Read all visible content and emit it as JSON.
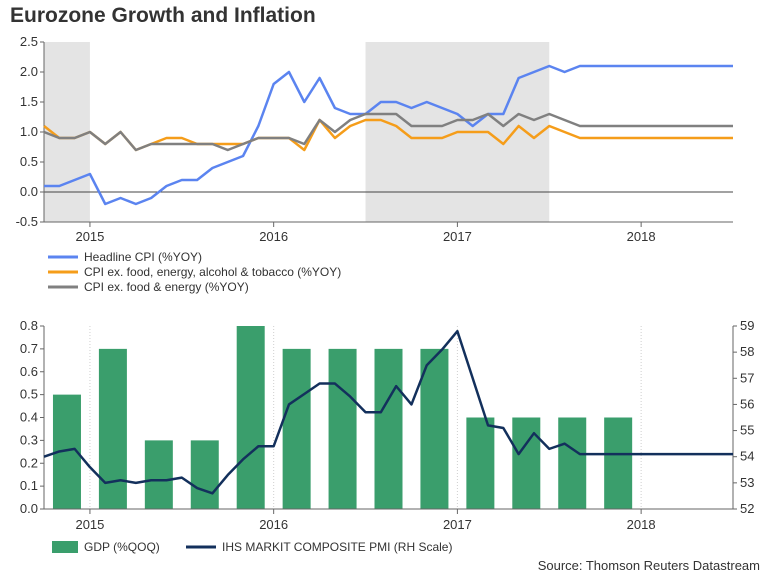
{
  "title": "Eurozone Growth and Inflation",
  "source": "Source: Thomson Reuters Datastream",
  "colors": {
    "headline": "#5b84f0",
    "core_excl_alc": "#f59d1a",
    "core": "#808080",
    "gdp": "#3a9e6c",
    "pmi": "#13305c",
    "shade": "#e4e4e4"
  },
  "chart_data": [
    {
      "type": "line",
      "title": "Eurozone Growth and Inflation",
      "xlabel": "",
      "ylabel": "",
      "ylim": [
        -0.5,
        2.5
      ],
      "y_ticks": [
        "2.5",
        "2.0",
        "1.5",
        "1.0",
        "0.5",
        "0.0",
        "-0.5"
      ],
      "x_tick_labels": [
        "2015",
        "2016",
        "2017",
        "2018"
      ],
      "x_tick_positions": [
        2015.0,
        2016.0,
        2017.0,
        2018.0
      ],
      "x_range": [
        2014.75,
        2018.5
      ],
      "shaded_ranges": [
        [
          2014.75,
          2015.0
        ],
        [
          2016.5,
          2017.5
        ]
      ],
      "x": [
        2014.75,
        2014.8333,
        2014.9167,
        2015.0,
        2015.0833,
        2015.1667,
        2015.25,
        2015.3333,
        2015.4167,
        2015.5,
        2015.5833,
        2015.6667,
        2015.75,
        2015.8333,
        2015.9167,
        2016.0,
        2016.0833,
        2016.1667,
        2016.25,
        2016.3333,
        2016.4167,
        2016.5,
        2016.5833,
        2016.6667,
        2016.75,
        2016.8333,
        2016.9167,
        2017.0,
        2017.0833,
        2017.1667,
        2017.25,
        2017.3333,
        2017.4167,
        2017.5,
        2017.5833,
        2017.6667,
        2017.75,
        2017.8333,
        2017.9167,
        2018.0,
        2018.0833,
        2018.1667,
        2018.25,
        2018.3333,
        2018.4167,
        2018.5
      ],
      "series": [
        {
          "name": "Headline CPI (%YOY)",
          "values": [
            0.1,
            0.1,
            0.2,
            0.3,
            -0.2,
            -0.1,
            -0.2,
            -0.1,
            0.1,
            0.2,
            0.2,
            0.4,
            0.5,
            0.6,
            1.1,
            1.8,
            2.0,
            1.5,
            1.9,
            1.4,
            1.3,
            1.3,
            1.5,
            1.5,
            1.4,
            1.5,
            1.4,
            1.3,
            1.1,
            1.3,
            1.3,
            1.9,
            2.0,
            2.1,
            2.0,
            2.1,
            2.1,
            2.1,
            2.1,
            2.1,
            2.1,
            2.1,
            2.1,
            2.1,
            2.1,
            2.1
          ]
        },
        {
          "name": "CPI ex. food, energy, alcohol & tobacco (%YOY)",
          "values": [
            1.1,
            0.9,
            0.9,
            1.0,
            0.8,
            1.0,
            0.7,
            0.8,
            0.9,
            0.9,
            0.8,
            0.8,
            0.8,
            0.8,
            0.9,
            0.9,
            0.9,
            0.7,
            1.2,
            0.9,
            1.1,
            1.2,
            1.2,
            1.1,
            0.9,
            0.9,
            0.9,
            1.0,
            1.0,
            1.0,
            0.8,
            1.1,
            0.9,
            1.1,
            1.0,
            0.9,
            0.9,
            0.9,
            0.9,
            0.9,
            0.9,
            0.9,
            0.9,
            0.9,
            0.9,
            0.9
          ]
        },
        {
          "name": "CPI ex. food & energy (%YOY)",
          "values": [
            1.0,
            0.9,
            0.9,
            1.0,
            0.8,
            1.0,
            0.7,
            0.8,
            0.8,
            0.8,
            0.8,
            0.8,
            0.7,
            0.8,
            0.9,
            0.9,
            0.9,
            0.8,
            1.2,
            1.0,
            1.2,
            1.3,
            1.3,
            1.3,
            1.1,
            1.1,
            1.1,
            1.2,
            1.2,
            1.3,
            1.1,
            1.3,
            1.2,
            1.3,
            1.2,
            1.1,
            1.1,
            1.1,
            1.1,
            1.1,
            1.1,
            1.1,
            1.1,
            1.1,
            1.1,
            1.1
          ]
        }
      ]
    },
    {
      "type": "bar",
      "title": "",
      "xlabel": "",
      "ylabel": "",
      "ylim": [
        0,
        0.8
      ],
      "y_ticks": [
        "0.8",
        "0.7",
        "0.6",
        "0.5",
        "0.4",
        "0.3",
        "0.2",
        "0.1",
        "0.0"
      ],
      "y2lim": [
        52,
        59
      ],
      "y2_ticks": [
        "59",
        "58",
        "57",
        "56",
        "55",
        "54",
        "53",
        "52"
      ],
      "x_tick_labels": [
        "2015",
        "2016",
        "2017",
        "2018"
      ],
      "x_tick_positions": [
        2015.0,
        2016.0,
        2017.0,
        2018.0
      ],
      "x_range": [
        2014.75,
        2018.5
      ],
      "bars": {
        "name": "GDP (%QOQ)",
        "x": [
          2014.875,
          2015.125,
          2015.375,
          2015.625,
          2015.875,
          2016.125,
          2016.375,
          2016.625,
          2016.875,
          2017.125,
          2017.375,
          2017.625,
          2017.875
        ],
        "values": [
          0.5,
          0.7,
          0.3,
          0.3,
          0.8,
          0.7,
          0.7,
          0.7,
          0.7,
          0.4,
          0.4,
          0.4,
          0.4
        ]
      },
      "line": {
        "name": "IHS MARKIT COMPOSITE PMI (RH Scale)",
        "axis": "right",
        "x": [
          2014.75,
          2014.8333,
          2014.9167,
          2015.0,
          2015.0833,
          2015.1667,
          2015.25,
          2015.3333,
          2015.4167,
          2015.5,
          2015.5833,
          2015.6667,
          2015.75,
          2015.8333,
          2015.9167,
          2016.0,
          2016.0833,
          2016.1667,
          2016.25,
          2016.3333,
          2016.4167,
          2016.5,
          2016.5833,
          2016.6667,
          2016.75,
          2016.8333,
          2016.9167,
          2017.0,
          2017.0833,
          2017.1667,
          2017.25,
          2017.3333,
          2017.4167,
          2017.5,
          2017.5833,
          2017.6667,
          2017.75,
          2017.8333,
          2017.9167,
          2018.0,
          2018.0833,
          2018.1667,
          2018.25,
          2018.3333,
          2018.4167,
          2018.5
        ],
        "values": [
          54.0,
          54.2,
          54.3,
          53.6,
          53.0,
          53.1,
          53.0,
          53.1,
          53.1,
          53.2,
          52.8,
          52.6,
          53.3,
          53.9,
          54.4,
          54.4,
          56.0,
          56.4,
          56.8,
          56.8,
          56.3,
          55.7,
          55.7,
          56.7,
          56.0,
          57.5,
          58.1,
          58.8,
          57.0,
          55.2,
          55.1,
          54.1,
          54.9,
          54.3,
          54.5,
          54.1,
          54.1,
          54.1,
          54.1,
          54.1,
          54.1,
          54.1,
          54.1,
          54.1,
          54.1,
          54.1
        ]
      }
    }
  ],
  "legend_top": [
    {
      "label": "Headline CPI (%YOY)"
    },
    {
      "label": "CPI ex. food, energy, alcohol & tobacco (%YOY)"
    },
    {
      "label": "CPI ex. food & energy (%YOY)"
    }
  ],
  "legend_bottom": [
    {
      "label": "GDP (%QOQ)"
    },
    {
      "label": "IHS MARKIT COMPOSITE PMI (RH Scale)"
    }
  ]
}
